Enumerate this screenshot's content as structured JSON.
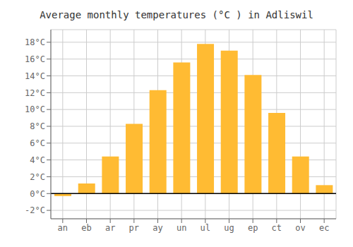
{
  "chart_data": {
    "type": "bar",
    "title": "Average monthly temperatures (°C ) in Adliswil",
    "categories": [
      "an",
      "eb",
      "ar",
      "pr",
      "ay",
      "un",
      "ul",
      "ug",
      "ep",
      "ct",
      "ov",
      "ec"
    ],
    "values": [
      -0.3,
      1.2,
      4.4,
      8.3,
      12.3,
      15.6,
      17.8,
      17.0,
      14.1,
      9.6,
      4.4,
      1.0
    ],
    "color": "#FFBB33",
    "ylim": [
      -3,
      19.5
    ],
    "yticks": [
      {
        "value": -2,
        "label": "-2°C"
      },
      {
        "value": 0,
        "label": "0°C"
      },
      {
        "value": 2,
        "label": "2°C"
      },
      {
        "value": 4,
        "label": "4°C"
      },
      {
        "value": 6,
        "label": "6°C"
      },
      {
        "value": 8,
        "label": "8°C"
      },
      {
        "value": 10,
        "label": "10°C"
      },
      {
        "value": 12,
        "label": "12°C"
      },
      {
        "value": 14,
        "label": "14°C"
      },
      {
        "value": 16,
        "label": "16°C"
      },
      {
        "value": 18,
        "label": "18°C"
      }
    ],
    "grid": true
  }
}
